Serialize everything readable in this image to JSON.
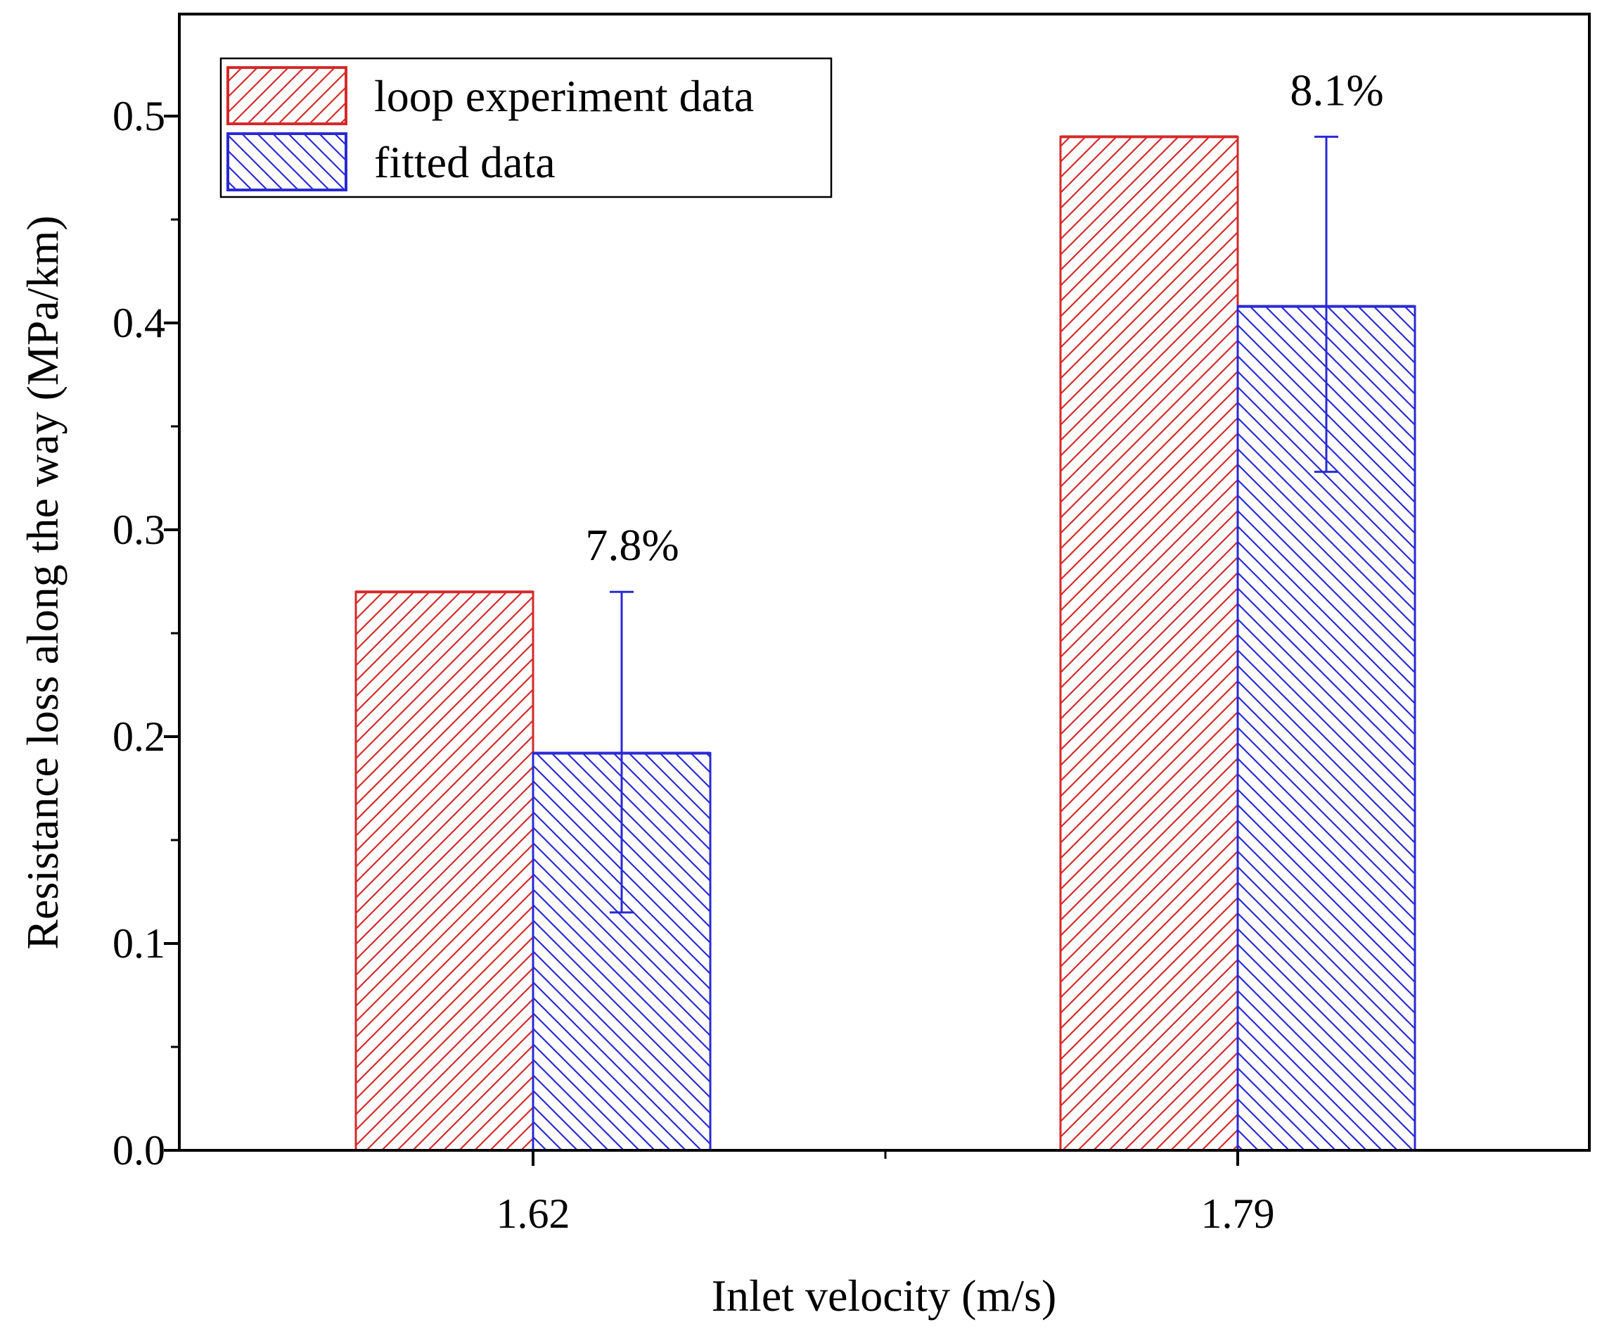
{
  "chart_data": {
    "type": "bar",
    "title": "",
    "xlabel": "Inlet velocity (m/s)",
    "ylabel": "Resistance loss along the way (MPa/km)",
    "categories": [
      "1.62",
      "1.79"
    ],
    "ylim": [
      0,
      0.55
    ],
    "yticks": [
      0.0,
      0.1,
      0.2,
      0.3,
      0.4,
      0.5
    ],
    "ytick_labels": [
      "0.0",
      "0.1",
      "0.2",
      "0.3",
      "0.4",
      "0.5"
    ],
    "series": [
      {
        "name": "loop experiment data",
        "values": [
          0.27,
          0.49
        ],
        "color": "#d42a2a",
        "hatch": "diagonal-up"
      },
      {
        "name": "fitted data",
        "values": [
          0.192,
          0.408
        ],
        "color": "#2a2ad4",
        "hatch": "diagonal-down",
        "error_bars": [
          {
            "low": 0.115,
            "high": 0.27
          },
          {
            "low": 0.328,
            "high": 0.49
          }
        ]
      }
    ],
    "annotations": [
      {
        "text": "7.8%",
        "category": "1.62"
      },
      {
        "text": "8.1%",
        "category": "1.79"
      }
    ],
    "legend": {
      "position": "top-left",
      "frame": true
    },
    "grid": false
  }
}
